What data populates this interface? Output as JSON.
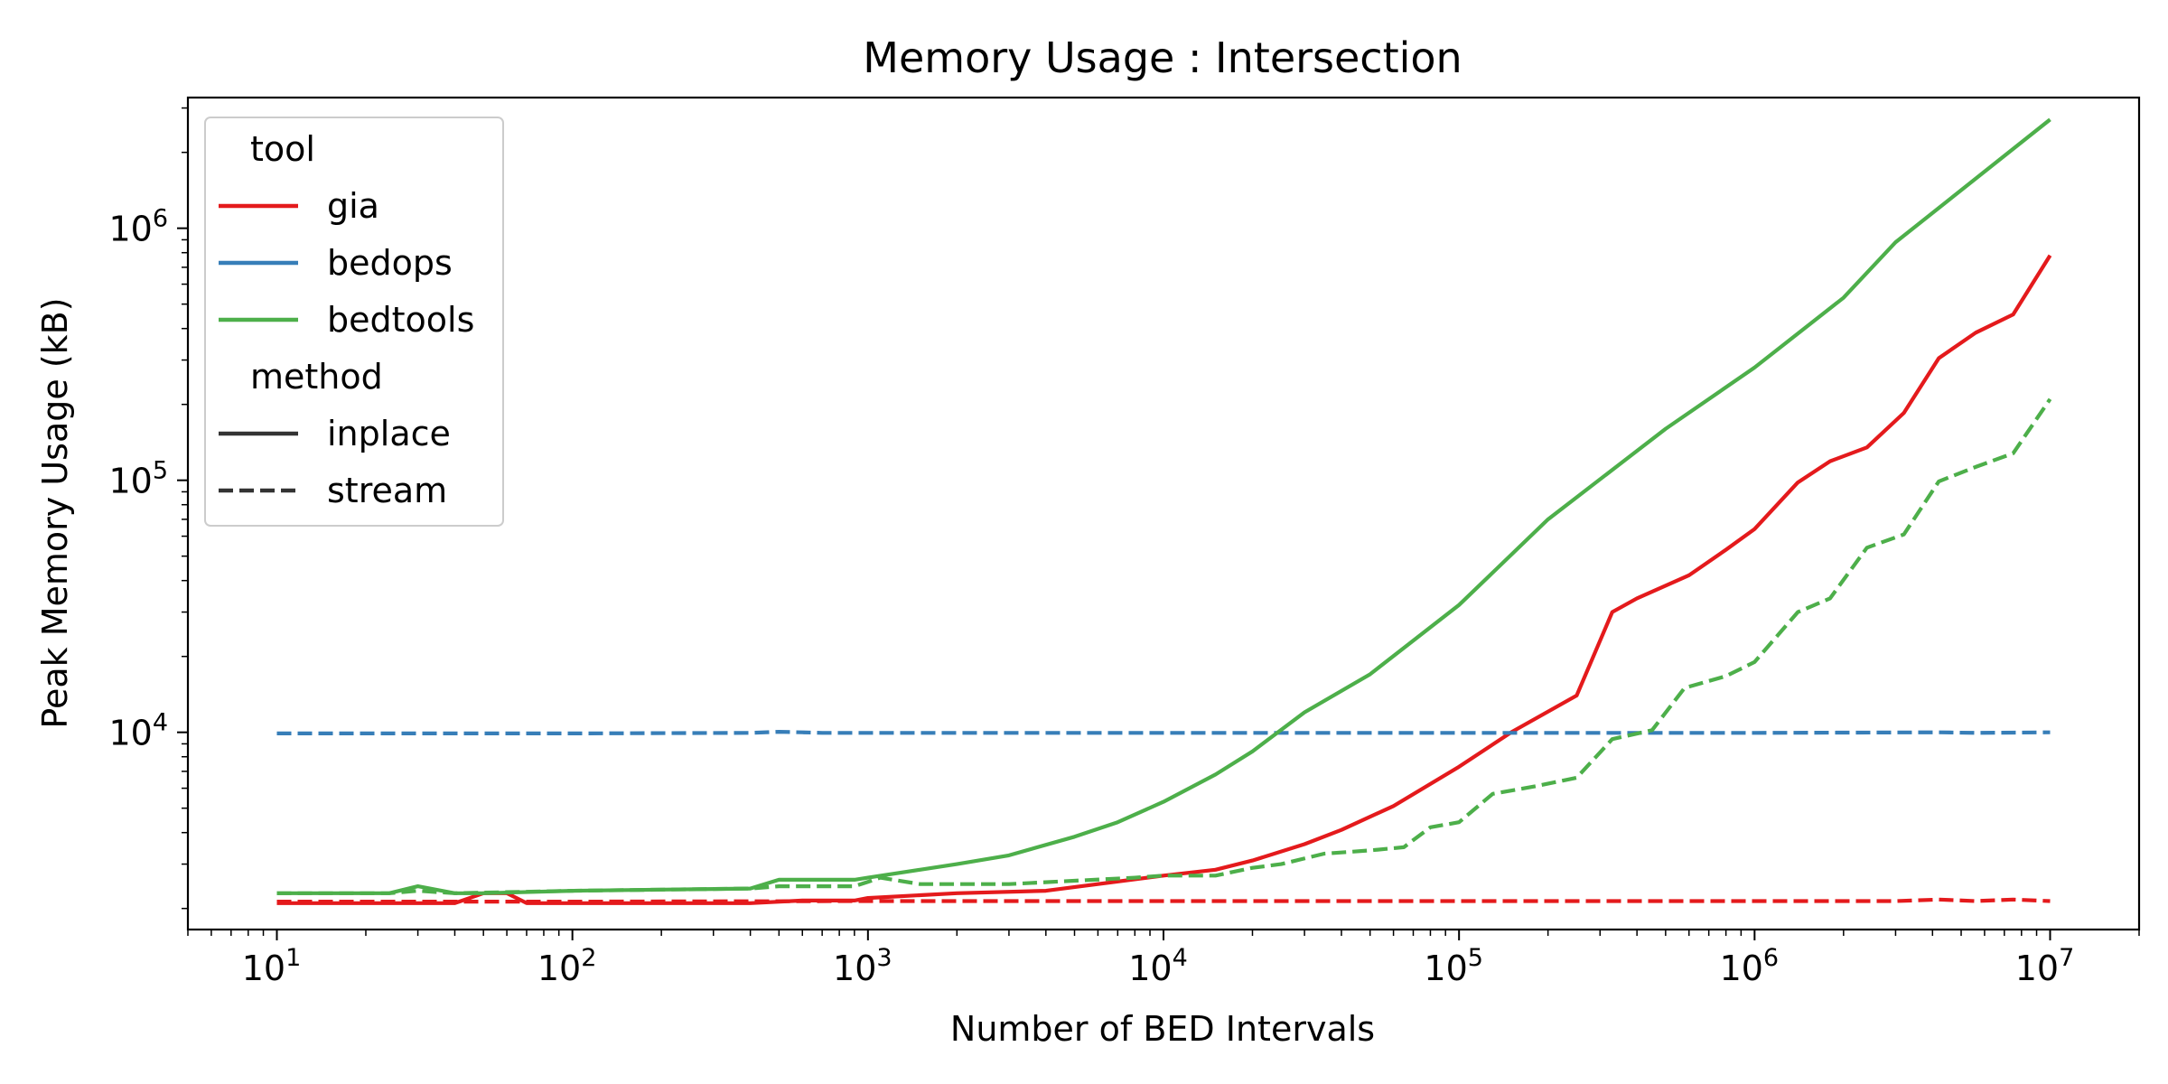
{
  "chart_data": {
    "type": "line",
    "title": "Memory Usage : Intersection",
    "xlabel": "Number of BED Intervals",
    "ylabel": "Peak Memory Usage (kB)",
    "xscale": "log",
    "yscale": "log",
    "xlim": [
      5,
      20000000
    ],
    "ylim": [
      1650,
      3300000
    ],
    "xticks": [
      {
        "value": 10,
        "base": "10",
        "exp": "1"
      },
      {
        "value": 100,
        "base": "10",
        "exp": "2"
      },
      {
        "value": 1000,
        "base": "10",
        "exp": "3"
      },
      {
        "value": 10000,
        "base": "10",
        "exp": "4"
      },
      {
        "value": 100000,
        "base": "10",
        "exp": "5"
      },
      {
        "value": 1000000,
        "base": "10",
        "exp": "6"
      },
      {
        "value": 10000000,
        "base": "10",
        "exp": "7"
      }
    ],
    "yticks": [
      {
        "value": 10000,
        "base": "10",
        "exp": "4"
      },
      {
        "value": 100000,
        "base": "10",
        "exp": "5"
      },
      {
        "value": 1000000,
        "base": "10",
        "exp": "6"
      }
    ],
    "grid": false,
    "legend": {
      "placement": "top-left",
      "hue_title": "tool",
      "style_title": "method",
      "tools": [
        {
          "name": "gia",
          "color": "#e41a1c"
        },
        {
          "name": "bedops",
          "color": "#377eb8"
        },
        {
          "name": "bedtools",
          "color": "#4daf4a"
        }
      ],
      "methods": [
        {
          "name": "inplace",
          "dash": "solid"
        },
        {
          "name": "stream",
          "dash": "dashed"
        }
      ],
      "style_color": "#333333"
    },
    "x": [
      10,
      13.4,
      17.9,
      24,
      32.2,
      43.1,
      57.7,
      77.3,
      103.6,
      138.8,
      185.9,
      249,
      333.6,
      446.9,
      598.6,
      801.9,
      1074,
      1439,
      1928,
      2582,
      3459,
      4634,
      6207,
      8315,
      11138,
      14921,
      19987,
      26775,
      35868,
      48049,
      64366,
      86225,
      115505,
      154728,
      207272,
      277659,
      371946,
      498252,
      667459,
      894115,
      1197742,
      1604478,
      2149334,
      2879204,
      3856915,
      5166650,
      6921182,
      10000000
    ],
    "series": [
      {
        "tool": "gia",
        "method": "inplace",
        "color": "#e41a1c",
        "dash": "solid",
        "x": [
          10,
          20,
          30,
          40,
          50,
          60,
          70,
          100,
          200,
          400,
          600,
          900,
          1000,
          2000,
          4000,
          6000,
          10000,
          15000,
          20000,
          30000,
          40000,
          60000,
          100000,
          150000,
          250000,
          330000,
          400000,
          600000,
          800000,
          1000000,
          1400000,
          1800000,
          2400000,
          3200000,
          4200000,
          5600000,
          7500000,
          10000000
        ],
        "values": [
          2100,
          2100,
          2100,
          2100,
          2300,
          2300,
          2100,
          2100,
          2100,
          2100,
          2150,
          2150,
          2200,
          2300,
          2350,
          2500,
          2700,
          2850,
          3100,
          3600,
          4100,
          5100,
          7300,
          10000,
          14000,
          30000,
          34000,
          42000,
          53000,
          64000,
          98000,
          119000,
          135000,
          185000,
          305000,
          385000,
          455000,
          780000
        ]
      },
      {
        "tool": "gia",
        "method": "stream",
        "color": "#e41a1c",
        "dash": "dashed",
        "x": [
          10,
          100,
          1000,
          10000,
          100000,
          1000000,
          3000000,
          4200000,
          5600000,
          7500000,
          10000000
        ],
        "values": [
          2130,
          2130,
          2140,
          2140,
          2140,
          2140,
          2140,
          2170,
          2140,
          2170,
          2140
        ]
      },
      {
        "tool": "bedops",
        "method": "stream",
        "color": "#377eb8",
        "dash": "dashed",
        "x": [
          10,
          100,
          400,
          500,
          600,
          700,
          1000,
          10000,
          100000,
          1000000,
          4200000,
          5600000,
          10000000
        ],
        "values": [
          9900,
          9900,
          9950,
          10050,
          10000,
          9950,
          9950,
          9950,
          9950,
          9950,
          10000,
          9950,
          10000
        ]
      },
      {
        "tool": "bedtools",
        "method": "inplace",
        "color": "#4daf4a",
        "dash": "solid",
        "x": [
          10,
          20,
          24,
          30,
          40,
          50,
          100,
          400,
          500,
          600,
          900,
          1000,
          1500,
          2000,
          3000,
          5000,
          7000,
          10000,
          15000,
          20000,
          30000,
          50000,
          100000,
          200000,
          500000,
          1000000,
          2000000,
          3000000,
          10000000
        ],
        "values": [
          2300,
          2300,
          2300,
          2450,
          2300,
          2300,
          2350,
          2400,
          2600,
          2600,
          2600,
          2650,
          2850,
          3000,
          3250,
          3850,
          4400,
          5300,
          6800,
          8400,
          12000,
          17000,
          32000,
          70000,
          160000,
          280000,
          530000,
          880000,
          2700000
        ]
      },
      {
        "tool": "bedtools",
        "method": "stream",
        "color": "#4daf4a",
        "dash": "dashed",
        "x": [
          10,
          20,
          24,
          30,
          40,
          100,
          400,
          500,
          900,
          1000,
          1100,
          1500,
          3000,
          8000,
          10000,
          15000,
          20000,
          25000,
          35000,
          50000,
          65000,
          80000,
          100000,
          130000,
          180000,
          250000,
          330000,
          450000,
          580000,
          800000,
          1000000,
          1400000,
          1800000,
          2400000,
          3200000,
          4200000,
          5600000,
          7500000,
          10000000
        ],
        "values": [
          2300,
          2300,
          2300,
          2350,
          2300,
          2350,
          2400,
          2450,
          2450,
          2550,
          2650,
          2500,
          2500,
          2650,
          2700,
          2700,
          2900,
          3000,
          3300,
          3400,
          3500,
          4200,
          4400,
          5700,
          6100,
          6600,
          9400,
          10200,
          15000,
          16700,
          19000,
          30000,
          34000,
          54000,
          61000,
          99000,
          113000,
          128000,
          210000
        ]
      }
    ]
  }
}
